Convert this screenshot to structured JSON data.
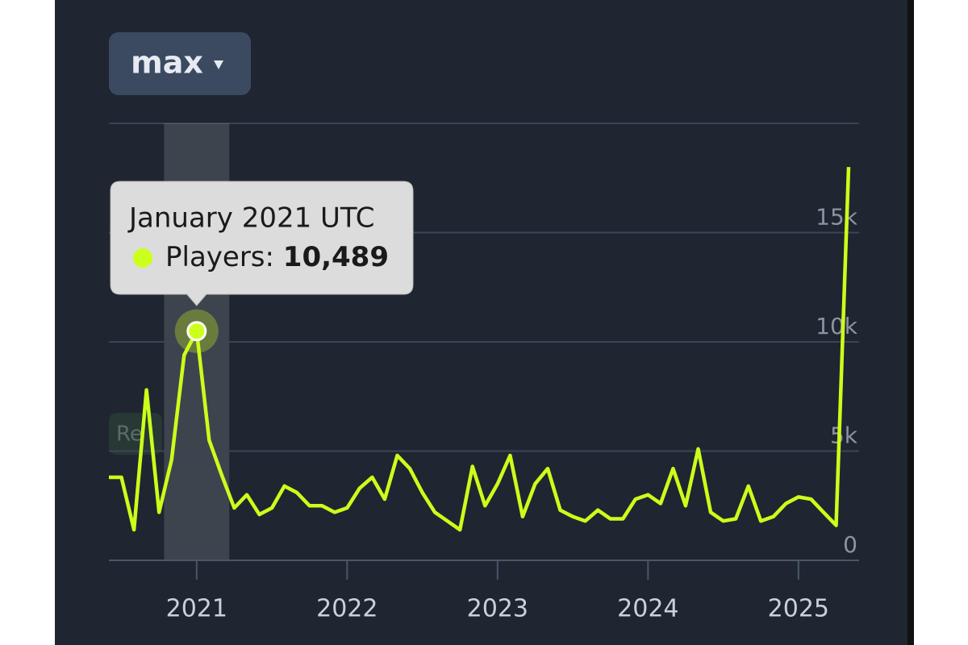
{
  "chart_data": {
    "type": "line",
    "range": "max",
    "reset_label": "Re",
    "categories": [
      null,
      null,
      null,
      null,
      null,
      null,
      null,
      "2021",
      null,
      null,
      null,
      null,
      null,
      null,
      null,
      null,
      null,
      null,
      null,
      "2022",
      null,
      null,
      null,
      null,
      null,
      null,
      null,
      null,
      null,
      null,
      null,
      "2023",
      null,
      null,
      null,
      null,
      null,
      null,
      null,
      null,
      null,
      null,
      null,
      "2024",
      null,
      null,
      null,
      null,
      null,
      null,
      null,
      null,
      null,
      null,
      null,
      "2025",
      null,
      null,
      null,
      null
    ],
    "series": [
      {
        "name": "Players:",
        "color": "#ccff1a",
        "values": [
          3800,
          3800,
          1400,
          7800,
          2200,
          4600,
          9400,
          10489,
          5500,
          3900,
          2400,
          3000,
          2100,
          2400,
          3400,
          3100,
          2500,
          2500,
          2200,
          2400,
          3300,
          3800,
          2800,
          4800,
          4200,
          3100,
          2200,
          1800,
          1400,
          4300,
          2500,
          3500,
          4800,
          2000,
          3500,
          4200,
          2300,
          2000,
          1800,
          2300,
          1900,
          1900,
          2800,
          3000,
          2600,
          4200,
          2500,
          5100,
          2200,
          1800,
          1900,
          3400,
          1800,
          2000,
          2600,
          2900,
          2800,
          2200,
          1600,
          18000
        ],
        "value_labels": [
          null,
          null,
          null,
          null,
          null,
          null,
          null,
          "10,489",
          null,
          null,
          null,
          null,
          null,
          null,
          null,
          null,
          null,
          null,
          null,
          null,
          null,
          null,
          null,
          null,
          null,
          null,
          null,
          null,
          null,
          null,
          null,
          null,
          null,
          null,
          null,
          null,
          null,
          null,
          null,
          null,
          null,
          null,
          null,
          null,
          null,
          null,
          null,
          null,
          null,
          null,
          null,
          null,
          null,
          null,
          null,
          null,
          null,
          null,
          null,
          null
        ]
      }
    ],
    "tooltip_title": "January 2021 UTC",
    "ylim": [
      0,
      20000
    ],
    "yticks": [
      0,
      {
        "value": 5000,
        "label": "5k"
      },
      {
        "value": 10000,
        "label": "10k"
      },
      {
        "value": 15000,
        "label": "15k"
      }
    ],
    "grid": true
  }
}
